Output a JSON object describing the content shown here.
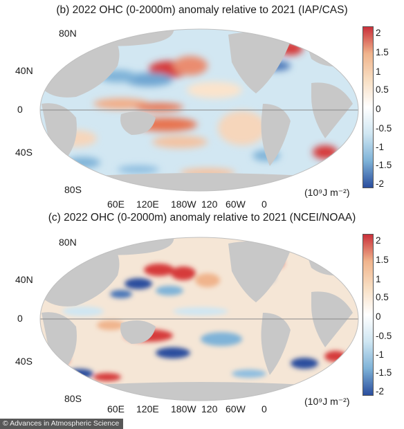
{
  "panels": [
    {
      "id": "b",
      "title": "(b)  2022 OHC (0-2000m) anomaly relative to 2021 (IAP/CAS)",
      "lat_labels": [
        "80N",
        "40N",
        "0",
        "40S",
        "80S"
      ],
      "lon_labels": [
        "60E",
        "120E",
        "180W",
        "120",
        "60W",
        "0"
      ],
      "unit": "(10⁹J m⁻²)",
      "colorbar_ticks": [
        "2",
        "1.5",
        "1",
        "0.5",
        "0",
        "-0.5",
        "-1",
        "-1.5",
        "-2"
      ],
      "colorbar_range": [
        -2,
        2
      ]
    },
    {
      "id": "c",
      "title": "(c)  2022 OHC (0-2000m) anomaly relative to 2021 (NCEI/NOAA)",
      "lat_labels": [
        "80N",
        "40N",
        "0",
        "40S",
        "80S"
      ],
      "lon_labels": [
        "60E",
        "120E",
        "180W",
        "120",
        "60W",
        "0"
      ],
      "unit": "(10⁹J m⁻²)",
      "colorbar_ticks": [
        "2",
        "1.5",
        "1",
        "0.5",
        "0",
        "-0.5",
        "-1",
        "-1.5",
        "-2"
      ],
      "colorbar_range": [
        -2,
        2
      ]
    }
  ],
  "colors": {
    "land": "#c8c8c8",
    "ocean_neutral": "#ffffff",
    "positive_strong": "#c9303a",
    "positive_mid": "#f0b48c",
    "positive_weak": "#f8dfc4",
    "negative_weak": "#cfe6f2",
    "negative_mid": "#7fb3d8",
    "negative_strong": "#2a4e9e",
    "equator_line": "#888888"
  },
  "credit": "© Advances in Atmospheric Science"
}
